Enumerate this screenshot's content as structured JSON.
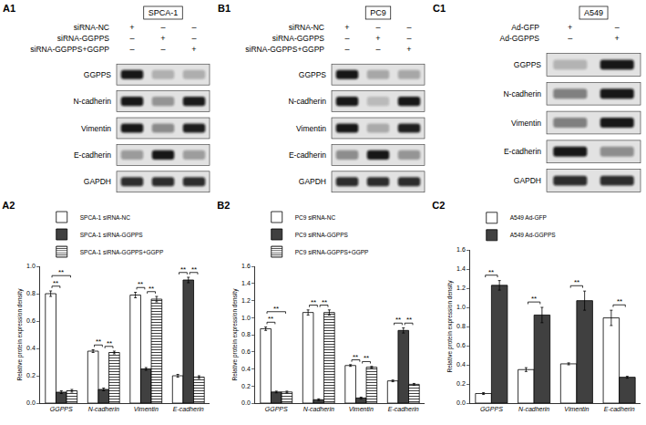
{
  "chart_data": [
    {
      "type": "bar",
      "title": "A2",
      "y_label": "Relative protein expression density",
      "categories": [
        "GGPPS",
        "N-cadherin",
        "Vimentin",
        "E-cadherin"
      ],
      "series": [
        {
          "name": "SPCA-1 siRNA-NC",
          "color": "#ffffff",
          "values": [
            0.8,
            0.38,
            0.79,
            0.2
          ],
          "errors": [
            0.02,
            0.01,
            0.02,
            0.01
          ]
        },
        {
          "name": "SPCA-1 siRNA-GGPPS",
          "color": "#404040",
          "values": [
            0.08,
            0.1,
            0.25,
            0.9
          ],
          "errors": [
            0.01,
            0.01,
            0.01,
            0.02
          ]
        },
        {
          "name": "SPCA-1 siRNA-GGPPS+GGPP",
          "color": "#ffffff",
          "marker": "hatch",
          "values": [
            0.09,
            0.37,
            0.76,
            0.19
          ],
          "errors": [
            0.01,
            0.01,
            0.02,
            0.01
          ]
        }
      ],
      "ylim": [
        0,
        1
      ],
      "yticks": [
        {
          "value": 0,
          "label": "0.0"
        },
        0.2,
        0.4,
        0.6,
        0.8,
        {
          "value": 1,
          "label": "1.0"
        }
      ],
      "grid": false,
      "legend": "top",
      "significance": [
        {
          "category": "GGPPS",
          "between": [
            0,
            1
          ],
          "label": "**"
        },
        {
          "category": "GGPPS",
          "between": [
            0,
            2
          ],
          "label": "**"
        },
        {
          "category": "N-cadherin",
          "between": [
            0,
            1
          ],
          "label": "**"
        },
        {
          "category": "N-cadherin",
          "between": [
            1,
            2
          ],
          "label": "**"
        },
        {
          "category": "Vimentin",
          "between": [
            0,
            1
          ],
          "label": "**"
        },
        {
          "category": "Vimentin",
          "between": [
            1,
            2
          ],
          "label": "**"
        },
        {
          "category": "E-cadherin",
          "between": [
            0,
            1
          ],
          "label": "**"
        },
        {
          "category": "E-cadherin",
          "between": [
            1,
            2
          ],
          "label": "**"
        }
      ]
    },
    {
      "type": "bar",
      "title": "B2",
      "y_label": "Relative protein expression density",
      "categories": [
        "GGPPS",
        "N-cadherin",
        "Vimentin",
        "E-cadherin"
      ],
      "series": [
        {
          "name": "PC9 siRNA-NC",
          "color": "#ffffff",
          "values": [
            0.87,
            1.06,
            0.44,
            0.26
          ],
          "errors": [
            0.02,
            0.03,
            0.01,
            0.01
          ]
        },
        {
          "name": "PC9 siRNA-GGPPS",
          "color": "#404040",
          "values": [
            0.13,
            0.04,
            0.06,
            0.85
          ],
          "errors": [
            0.01,
            0.01,
            0.01,
            0.03
          ]
        },
        {
          "name": "PC9 siRNA-GGPPS+GGPP",
          "color": "#ffffff",
          "marker": "hatch",
          "values": [
            0.13,
            1.06,
            0.42,
            0.22
          ],
          "errors": [
            0.01,
            0.03,
            0.01,
            0.01
          ]
        }
      ],
      "ylim": [
        0,
        1.6
      ],
      "yticks": [
        {
          "value": 0,
          "label": "0.0"
        },
        0.2,
        0.4,
        0.6,
        0.8,
        {
          "value": 1,
          "label": "1.0"
        },
        1.2,
        1.4,
        1.6
      ],
      "grid": false,
      "legend": "top",
      "significance": [
        {
          "category": "GGPPS",
          "between": [
            0,
            1
          ],
          "label": "**"
        },
        {
          "category": "GGPPS",
          "between": [
            0,
            2
          ],
          "label": "**"
        },
        {
          "category": "N-cadherin",
          "between": [
            0,
            1
          ],
          "label": "**"
        },
        {
          "category": "N-cadherin",
          "between": [
            1,
            2
          ],
          "label": "**"
        },
        {
          "category": "Vimentin",
          "between": [
            0,
            1
          ],
          "label": "**"
        },
        {
          "category": "Vimentin",
          "between": [
            1,
            2
          ],
          "label": "**"
        },
        {
          "category": "E-cadherin",
          "between": [
            0,
            1
          ],
          "label": "**"
        },
        {
          "category": "E-cadherin",
          "between": [
            1,
            2
          ],
          "label": "**"
        }
      ]
    },
    {
      "type": "bar",
      "title": "C2",
      "y_label": "Relative protein expression density",
      "categories": [
        "GGPPS",
        "N-cadherin",
        "Vimentin",
        "E-cadherin"
      ],
      "series": [
        {
          "name": "A549 Ad-GFP",
          "color": "#ffffff",
          "values": [
            0.1,
            0.35,
            0.41,
            0.89
          ],
          "errors": [
            0.01,
            0.02,
            0.01,
            0.08
          ]
        },
        {
          "name": "A549 Ad-GGPPS",
          "color": "#404040",
          "values": [
            1.23,
            0.92,
            1.07,
            0.27
          ],
          "errors": [
            0.05,
            0.08,
            0.1,
            0.01
          ]
        }
      ],
      "ylim": [
        0,
        1.6
      ],
      "yticks": [
        {
          "value": 0,
          "label": "0.0"
        },
        0.2,
        0.4,
        0.6,
        0.8,
        {
          "value": 1,
          "label": "1.0"
        },
        1.2,
        1.4,
        1.6
      ],
      "grid": false,
      "legend": "top",
      "significance": [
        {
          "category": "GGPPS",
          "between": [
            0,
            1
          ],
          "label": "**"
        },
        {
          "category": "N-cadherin",
          "between": [
            0,
            1
          ],
          "label": "**"
        },
        {
          "category": "Vimentin",
          "between": [
            0,
            1
          ],
          "label": "**"
        },
        {
          "category": "E-cadherin",
          "between": [
            0,
            1
          ],
          "label": "**"
        }
      ]
    }
  ],
  "blots": [
    {
      "label": "A1",
      "cell_line": "SPCA-1",
      "conditions": [
        {
          "name": "siRNA-NC",
          "marks": [
            "+",
            "–",
            "–"
          ]
        },
        {
          "name": "siRNA-GGPPS",
          "marks": [
            "–",
            "+",
            "–"
          ]
        },
        {
          "name": "siRNA-GGPPS+GGPP",
          "marks": [
            "–",
            "–",
            "+"
          ]
        }
      ],
      "proteins": [
        "GGPPS",
        "N-cadherin",
        "Vimentin",
        "E-cadherin",
        "GAPDH"
      ]
    },
    {
      "label": "B1",
      "cell_line": "PC9",
      "conditions": [
        {
          "name": "siRNA-NC",
          "marks": [
            "+",
            "–",
            "–"
          ]
        },
        {
          "name": "siRNA-GGPPS",
          "marks": [
            "–",
            "+",
            "–"
          ]
        },
        {
          "name": "siRNA-GGPPS+GGPP",
          "marks": [
            "–",
            "–",
            "+"
          ]
        }
      ],
      "proteins": [
        "GGPPS",
        "N-cadherin",
        "Vimentin",
        "E-cadherin",
        "GAPDH"
      ]
    },
    {
      "label": "C1",
      "cell_line": "A549",
      "conditions": [
        {
          "name": "Ad-GFP",
          "marks": [
            "+",
            "–"
          ]
        },
        {
          "name": "Ad-GGPPS",
          "marks": [
            "–",
            "+"
          ]
        }
      ],
      "proteins": [
        "GGPPS",
        "N-cadherin",
        "Vimentin",
        "E-cadherin",
        "GAPDH"
      ]
    }
  ]
}
